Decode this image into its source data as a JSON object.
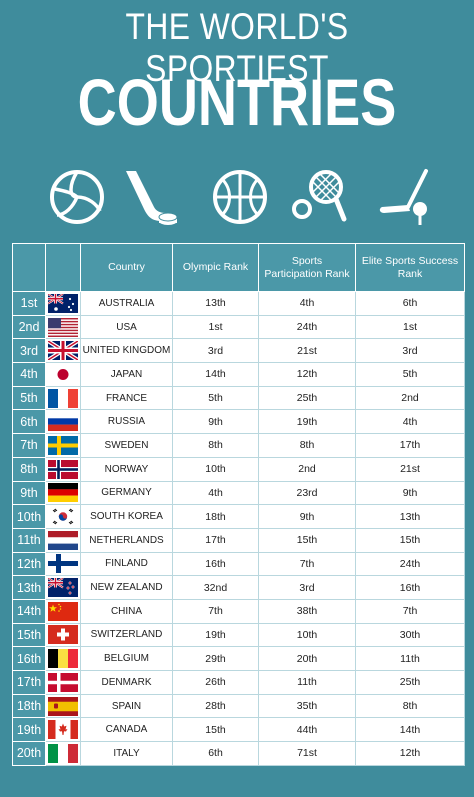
{
  "title": {
    "line1": "THE WORLD'S SPORTIEST",
    "line2": "COUNTRIES"
  },
  "icons": [
    "volleyball-icon",
    "hockey-stick-icon",
    "basketball-icon",
    "tennis-icon",
    "golf-icon"
  ],
  "table": {
    "headers": [
      "",
      "",
      "Country",
      "Olympic Rank",
      "Sports Participation Rank",
      "Elite Sports Success Rank"
    ],
    "rows": [
      {
        "rank": "1st",
        "flag": "australia",
        "country": "AUSTRALIA",
        "olympic": "13th",
        "participation": "4th",
        "elite": "6th"
      },
      {
        "rank": "2nd",
        "flag": "usa",
        "country": "USA",
        "olympic": "1st",
        "participation": "24th",
        "elite": "1st"
      },
      {
        "rank": "3rd",
        "flag": "uk",
        "country": "UNITED KINGDOM",
        "olympic": "3rd",
        "participation": "21st",
        "elite": "3rd"
      },
      {
        "rank": "4th",
        "flag": "japan",
        "country": "JAPAN",
        "olympic": "14th",
        "participation": "12th",
        "elite": "5th"
      },
      {
        "rank": "5th",
        "flag": "france",
        "country": "FRANCE",
        "olympic": "5th",
        "participation": "25th",
        "elite": "2nd"
      },
      {
        "rank": "6th",
        "flag": "russia",
        "country": "RUSSIA",
        "olympic": "9th",
        "participation": "19th",
        "elite": "4th"
      },
      {
        "rank": "7th",
        "flag": "sweden",
        "country": "SWEDEN",
        "olympic": "8th",
        "participation": "8th",
        "elite": "17th"
      },
      {
        "rank": "8th",
        "flag": "norway",
        "country": "NORWAY",
        "olympic": "10th",
        "participation": "2nd",
        "elite": "21st"
      },
      {
        "rank": "9th",
        "flag": "germany",
        "country": "GERMANY",
        "olympic": "4th",
        "participation": "23rd",
        "elite": "9th"
      },
      {
        "rank": "10th",
        "flag": "southkorea",
        "country": "SOUTH KOREA",
        "olympic": "18th",
        "participation": "9th",
        "elite": "13th"
      },
      {
        "rank": "11th",
        "flag": "netherlands",
        "country": "NETHERLANDS",
        "olympic": "17th",
        "participation": "15th",
        "elite": "15th"
      },
      {
        "rank": "12th",
        "flag": "finland",
        "country": "FINLAND",
        "olympic": "16th",
        "participation": "7th",
        "elite": "24th"
      },
      {
        "rank": "13th",
        "flag": "newzealand",
        "country": "NEW ZEALAND",
        "olympic": "32nd",
        "participation": "3rd",
        "elite": "16th"
      },
      {
        "rank": "14th",
        "flag": "china",
        "country": "CHINA",
        "olympic": "7th",
        "participation": "38th",
        "elite": "7th"
      },
      {
        "rank": "15th",
        "flag": "switzerland",
        "country": "SWITZERLAND",
        "olympic": "19th",
        "participation": "10th",
        "elite": "30th"
      },
      {
        "rank": "16th",
        "flag": "belgium",
        "country": "BELGIUM",
        "olympic": "29th",
        "participation": "20th",
        "elite": "11th"
      },
      {
        "rank": "17th",
        "flag": "denmark",
        "country": "DENMARK",
        "olympic": "26th",
        "participation": "11th",
        "elite": "25th"
      },
      {
        "rank": "18th",
        "flag": "spain",
        "country": "SPAIN",
        "olympic": "28th",
        "participation": "35th",
        "elite": "8th"
      },
      {
        "rank": "19th",
        "flag": "canada",
        "country": "CANADA",
        "olympic": "15th",
        "participation": "44th",
        "elite": "14th"
      },
      {
        "rank": "20th",
        "flag": "italy",
        "country": "ITALY",
        "olympic": "6th",
        "participation": "71st",
        "elite": "12th"
      }
    ]
  },
  "colors": {
    "background": "#3f8c9c",
    "header": "#4b98a8",
    "text": "#ffffff"
  }
}
